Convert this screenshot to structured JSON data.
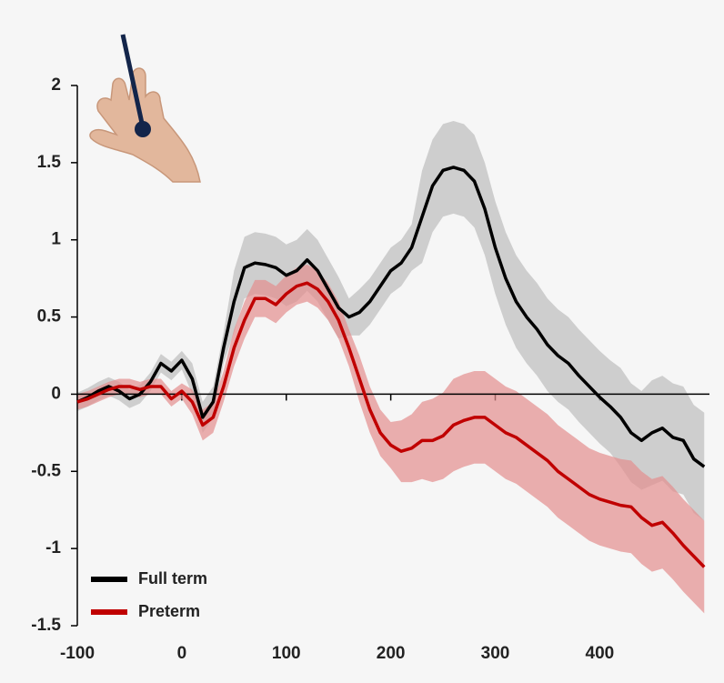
{
  "chart_data": {
    "type": "line",
    "x": [
      -100,
      -90,
      -80,
      -70,
      -60,
      -50,
      -40,
      -30,
      -20,
      -10,
      0,
      10,
      20,
      30,
      40,
      50,
      60,
      70,
      80,
      90,
      100,
      110,
      120,
      130,
      140,
      150,
      160,
      170,
      180,
      190,
      200,
      210,
      220,
      230,
      240,
      250,
      260,
      270,
      280,
      290,
      300,
      310,
      320,
      330,
      340,
      350,
      360,
      370,
      380,
      390,
      400,
      410,
      420,
      430,
      440,
      450,
      460,
      470,
      480,
      490,
      500
    ],
    "series": [
      {
        "name": "Full term",
        "color": "#000000",
        "band_color": "#bdbdbd",
        "values": [
          -0.05,
          -0.02,
          0.02,
          0.05,
          0.02,
          -0.03,
          0.0,
          0.08,
          0.2,
          0.15,
          0.22,
          0.1,
          -0.15,
          -0.05,
          0.3,
          0.6,
          0.82,
          0.85,
          0.84,
          0.82,
          0.77,
          0.8,
          0.87,
          0.8,
          0.68,
          0.56,
          0.5,
          0.53,
          0.6,
          0.7,
          0.8,
          0.85,
          0.95,
          1.15,
          1.35,
          1.45,
          1.47,
          1.45,
          1.38,
          1.2,
          0.95,
          0.75,
          0.6,
          0.5,
          0.42,
          0.32,
          0.25,
          0.2,
          0.12,
          0.05,
          -0.02,
          -0.08,
          -0.15,
          -0.25,
          -0.3,
          -0.25,
          -0.22,
          -0.28,
          -0.3,
          -0.42,
          -0.47
        ],
        "error": [
          0.06,
          0.06,
          0.06,
          0.06,
          0.06,
          0.06,
          0.06,
          0.06,
          0.06,
          0.06,
          0.06,
          0.1,
          0.1,
          0.1,
          0.1,
          0.2,
          0.2,
          0.2,
          0.2,
          0.2,
          0.2,
          0.2,
          0.2,
          0.2,
          0.2,
          0.2,
          0.12,
          0.15,
          0.15,
          0.15,
          0.15,
          0.15,
          0.15,
          0.3,
          0.3,
          0.3,
          0.3,
          0.3,
          0.3,
          0.3,
          0.3,
          0.3,
          0.3,
          0.3,
          0.3,
          0.3,
          0.3,
          0.3,
          0.3,
          0.3,
          0.3,
          0.3,
          0.32,
          0.32,
          0.32,
          0.34,
          0.34,
          0.35,
          0.35,
          0.35,
          0.35
        ]
      },
      {
        "name": "Preterm",
        "color": "#c00000",
        "band_color": "#e48f8f",
        "values": [
          -0.05,
          -0.03,
          0.0,
          0.03,
          0.05,
          0.05,
          0.03,
          0.05,
          0.05,
          -0.03,
          0.02,
          -0.05,
          -0.2,
          -0.15,
          0.05,
          0.3,
          0.48,
          0.62,
          0.62,
          0.58,
          0.65,
          0.7,
          0.72,
          0.68,
          0.6,
          0.48,
          0.3,
          0.1,
          -0.1,
          -0.25,
          -0.33,
          -0.37,
          -0.35,
          -0.3,
          -0.3,
          -0.27,
          -0.2,
          -0.17,
          -0.15,
          -0.15,
          -0.2,
          -0.25,
          -0.28,
          -0.33,
          -0.38,
          -0.43,
          -0.5,
          -0.55,
          -0.6,
          -0.65,
          -0.68,
          -0.7,
          -0.72,
          -0.73,
          -0.8,
          -0.85,
          -0.83,
          -0.9,
          -0.98,
          -1.05,
          -1.12
        ],
        "error": [
          0.05,
          0.05,
          0.05,
          0.05,
          0.05,
          0.05,
          0.05,
          0.05,
          0.05,
          0.05,
          0.05,
          0.08,
          0.1,
          0.1,
          0.1,
          0.12,
          0.12,
          0.12,
          0.12,
          0.12,
          0.12,
          0.12,
          0.12,
          0.12,
          0.12,
          0.12,
          0.12,
          0.15,
          0.15,
          0.15,
          0.15,
          0.2,
          0.22,
          0.25,
          0.27,
          0.28,
          0.3,
          0.3,
          0.3,
          0.3,
          0.3,
          0.3,
          0.3,
          0.3,
          0.3,
          0.3,
          0.3,
          0.3,
          0.3,
          0.3,
          0.3,
          0.3,
          0.3,
          0.3,
          0.3,
          0.3,
          0.3,
          0.3,
          0.3,
          0.3,
          0.3
        ]
      }
    ],
    "xlim": [
      -100,
      505
    ],
    "ylim": [
      -1.5,
      2
    ],
    "xticks": [
      -100,
      0,
      100,
      200,
      300,
      400
    ],
    "yticks": [
      -1.5,
      -1,
      -0.5,
      0,
      0.5,
      1,
      1.5,
      2
    ],
    "legend": "lower-left"
  }
}
